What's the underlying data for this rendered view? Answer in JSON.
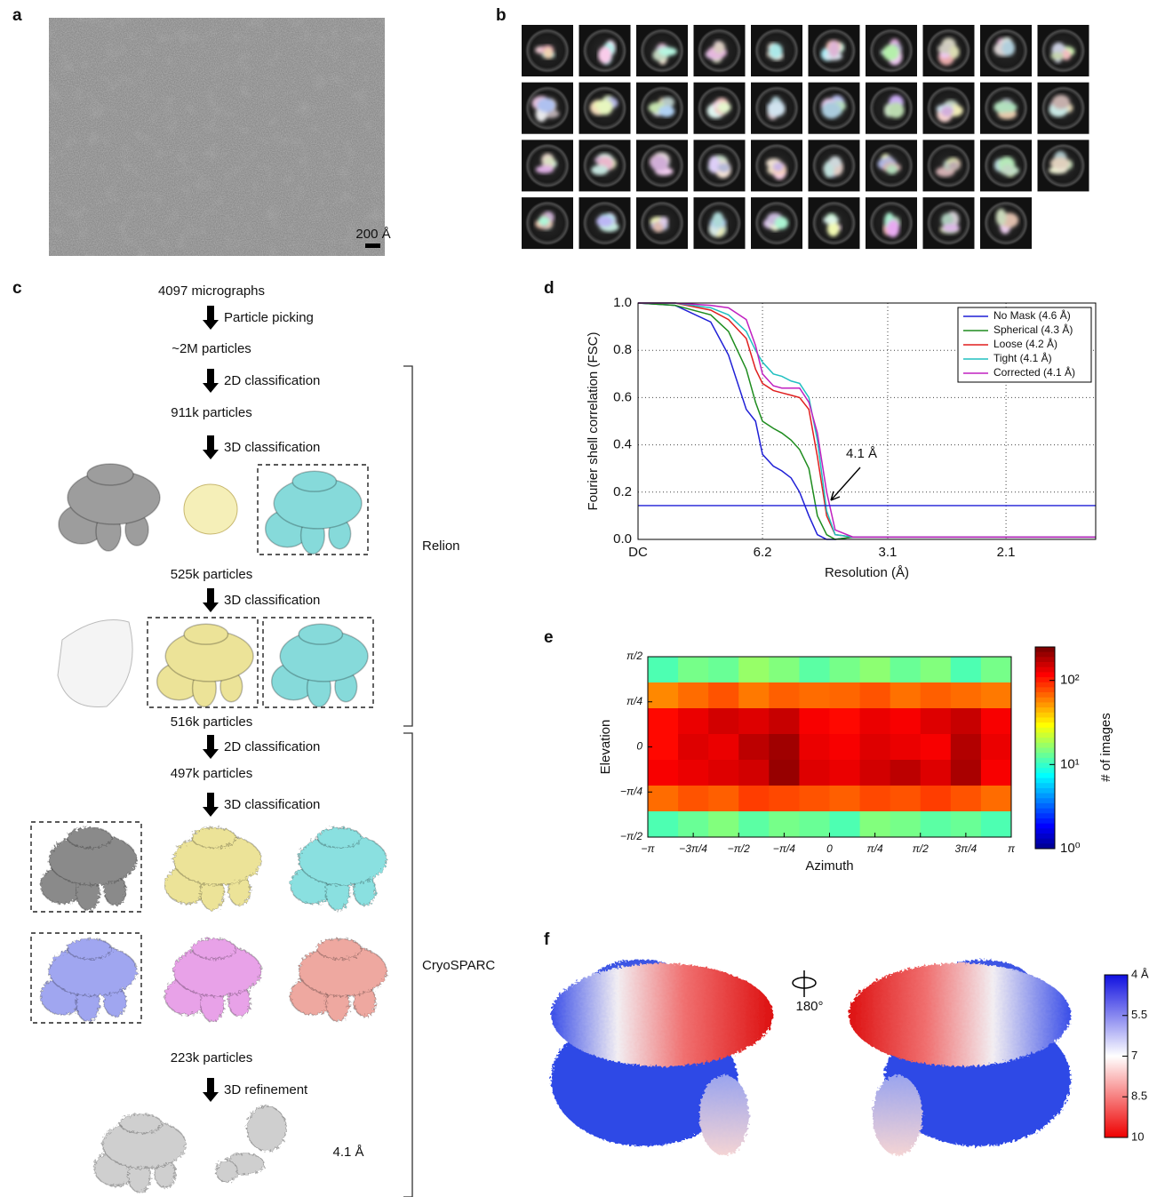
{
  "panel_labels": [
    "a",
    "b",
    "c",
    "d",
    "e",
    "f"
  ],
  "micrograph": {
    "scale_bar": "200 Å"
  },
  "workflow": {
    "items": [
      "4097 micrographs",
      "Particle picking",
      "~2M particles",
      "2D classification",
      "911k particles",
      "3D classification",
      "525k particles",
      "3D classification",
      "516k particles",
      "2D classification",
      "497k particles",
      "3D classification",
      "223k particles",
      "3D refinement"
    ],
    "final_resolution": "4.1 Å",
    "software": [
      "Relion",
      "CryoSPARC"
    ]
  },
  "chart_data": [
    {
      "type": "line",
      "xlabel": "Resolution (Å)",
      "ylabel": "Fourier shell correlation (FSC)",
      "x": [
        0,
        0.048,
        0.094,
        0.117,
        0.14,
        0.152,
        0.161,
        0.175,
        0.186,
        0.198,
        0.209,
        0.221,
        0.232,
        0.244,
        0.255,
        0.278,
        0.324,
        0.439,
        0.592
      ],
      "series": [
        {
          "name": "No Mask (4.6 Å)",
          "color": "#1f1fd6",
          "values": [
            1,
            0.99,
            0.92,
            0.78,
            0.55,
            0.5,
            0.36,
            0.31,
            0.29,
            0.26,
            0.2,
            0.1,
            0.02,
            0,
            0,
            0.01,
            0.01,
            0.01,
            0.01
          ]
        },
        {
          "name": "Spherical (4.3 Å)",
          "color": "#1e8c1e",
          "values": [
            1,
            0.99,
            0.95,
            0.88,
            0.72,
            0.58,
            0.5,
            0.47,
            0.45,
            0.42,
            0.38,
            0.3,
            0.1,
            0.02,
            0,
            0.01,
            0.01,
            0.01,
            0.01
          ]
        },
        {
          "name": "Loose (4.2 Å)",
          "color": "#e01f1f",
          "values": [
            1,
            1,
            0.97,
            0.93,
            0.85,
            0.72,
            0.66,
            0.63,
            0.62,
            0.61,
            0.6,
            0.55,
            0.35,
            0.1,
            0.02,
            0.01,
            0.01,
            0.01,
            0.01
          ]
        },
        {
          "name": "Tight (4.1 Å)",
          "color": "#20c0c0",
          "values": [
            1,
            1,
            0.98,
            0.95,
            0.88,
            0.8,
            0.75,
            0.7,
            0.69,
            0.67,
            0.66,
            0.6,
            0.42,
            0.12,
            0.02,
            0.01,
            0.01,
            0.01,
            0.01
          ]
        },
        {
          "name": "Corrected (4.1 Å)",
          "color": "#c020c0",
          "values": [
            1,
            1,
            0.99,
            0.98,
            0.93,
            0.82,
            0.7,
            0.65,
            0.64,
            0.64,
            0.64,
            0.58,
            0.45,
            0.2,
            0.04,
            0.01,
            0.01,
            0.01,
            0.01
          ]
        }
      ],
      "threshold": 0.143,
      "threshold_color": "#1f1fd6",
      "annotation": "4.1 Å",
      "xlim": [
        0,
        0.592
      ],
      "xticks": [
        {
          "value": 0,
          "label": "DC"
        },
        {
          "value": 0.161,
          "label": "6.2"
        },
        {
          "value": 0.323,
          "label": "3.1"
        },
        {
          "value": 0.476,
          "label": "2.1"
        }
      ],
      "ylim": [
        0,
        1
      ],
      "yticks": [
        {
          "value": 0,
          "label": "0.0"
        },
        0.2,
        0.4,
        0.6,
        0.8,
        {
          "value": 1,
          "label": "1.0"
        }
      ],
      "grid": true,
      "legend": "upper right"
    },
    {
      "type": "heatmap",
      "xlabel": "Azimuth",
      "ylabel": "Elevation",
      "xlim": [
        -3.1416,
        3.1416
      ],
      "xticks": [
        {
          "value": -3.1416,
          "label": "−π"
        },
        {
          "value": -2.3562,
          "label": "−3π/4"
        },
        {
          "value": -1.5708,
          "label": "−π/2"
        },
        {
          "value": -0.7854,
          "label": "−π/4"
        },
        0,
        {
          "value": 0.7854,
          "label": "π/4"
        },
        {
          "value": 1.5708,
          "label": "π/2"
        },
        {
          "value": 2.3562,
          "label": "3π/4"
        },
        {
          "value": 3.1416,
          "label": "π"
        }
      ],
      "ylim": [
        -1.5708,
        1.5708
      ],
      "yticks": [
        {
          "value": -1.5708,
          "label": "−π/2"
        },
        {
          "value": -0.7854,
          "label": "−π/4"
        },
        0,
        {
          "value": 0.7854,
          "label": "π/4"
        },
        {
          "value": 1.5708,
          "label": "π/2"
        }
      ],
      "values": [
        [
          12,
          15,
          14,
          18,
          16,
          13,
          15,
          17,
          14,
          16,
          12,
          15
        ],
        [
          60,
          70,
          80,
          65,
          75,
          70,
          72,
          80,
          68,
          75,
          70,
          65
        ],
        [
          120,
          140,
          160,
          150,
          170,
          130,
          120,
          140,
          130,
          150,
          170,
          130
        ],
        [
          120,
          150,
          140,
          180,
          210,
          140,
          130,
          150,
          140,
          130,
          190,
          140
        ],
        [
          130,
          140,
          150,
          160,
          220,
          150,
          140,
          160,
          180,
          150,
          200,
          130
        ],
        [
          70,
          80,
          75,
          90,
          85,
          80,
          75,
          85,
          80,
          90,
          80,
          70
        ],
        [
          12,
          14,
          16,
          13,
          15,
          14,
          12,
          16,
          15,
          13,
          14,
          12
        ]
      ],
      "colorbar": {
        "label": "# of images",
        "lim": [
          1,
          250
        ],
        "log": true,
        "colormap": "jet",
        "ticks": [
          {
            "value": 1,
            "label": "10⁰"
          },
          {
            "value": 10,
            "label": "10¹"
          },
          {
            "value": 100,
            "label": "10²"
          }
        ]
      }
    }
  ],
  "local_resolution": {
    "rotation": "180°",
    "colorbar": {
      "lim": [
        4,
        10
      ],
      "colors": [
        "#1010e0",
        "#ffffff",
        "#ee0000"
      ],
      "ticks": [
        {
          "value": 4,
          "label": "4 Å"
        },
        {
          "value": 5.5,
          "label": "5.5"
        },
        {
          "value": 7,
          "label": "7"
        },
        {
          "value": 8.5,
          "label": "8.5"
        },
        {
          "value": 10,
          "label": "10"
        }
      ]
    }
  }
}
